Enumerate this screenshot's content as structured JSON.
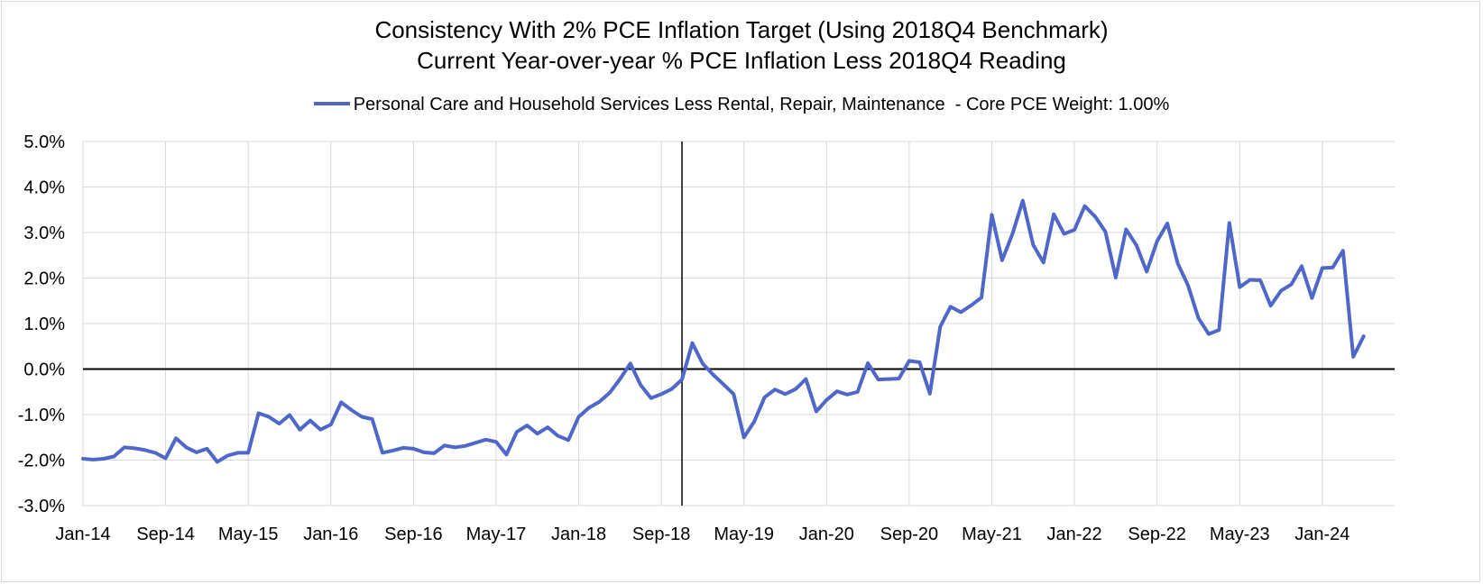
{
  "chart_data": {
    "type": "line",
    "title": "Consistency With 2% PCE Inflation Target (Using 2018Q4 Benchmark)",
    "subtitle": "Current Year-over-year % PCE Inflation Less 2018Q4 Reading",
    "xlabel": "",
    "ylabel": "",
    "ylim": [
      -3.0,
      5.0
    ],
    "y_ticks": [
      "5.0%",
      "4.0%",
      "3.0%",
      "2.0%",
      "1.0%",
      "0.0%",
      "-1.0%",
      "-2.0%",
      "-3.0%"
    ],
    "y_tick_values": [
      5,
      4,
      3,
      2,
      1,
      0,
      -1,
      -2,
      -3
    ],
    "x_ticks": [
      "Jan-14",
      "Sep-14",
      "May-15",
      "Jan-16",
      "Sep-16",
      "May-17",
      "Jan-18",
      "Sep-18",
      "May-19",
      "Jan-20",
      "Sep-20",
      "May-21",
      "Jan-22",
      "Sep-22",
      "May-23",
      "Jan-24"
    ],
    "x_tick_months": [
      0,
      8,
      16,
      24,
      32,
      40,
      48,
      56,
      64,
      72,
      80,
      88,
      96,
      104,
      112,
      120
    ],
    "x_range_months": [
      0,
      127
    ],
    "start_month": "Jan-14",
    "benchmark_month_index": 58,
    "grid": true,
    "legend_position": "top",
    "series": [
      {
        "name": "Personal Care and Household Services Less Rental, Repair, Maintenance  - Core PCE Weight: 1.00%",
        "color": "#4f67c8",
        "values": [
          -1.97,
          -1.99,
          -1.97,
          -1.92,
          -1.72,
          -1.74,
          -1.78,
          -1.84,
          -1.96,
          -1.52,
          -1.72,
          -1.83,
          -1.75,
          -2.04,
          -1.9,
          -1.84,
          -1.84,
          -0.97,
          -1.05,
          -1.2,
          -1.01,
          -1.33,
          -1.13,
          -1.33,
          -1.22,
          -0.73,
          -0.9,
          -1.05,
          -1.1,
          -1.84,
          -1.79,
          -1.73,
          -1.75,
          -1.83,
          -1.85,
          -1.68,
          -1.72,
          -1.69,
          -1.62,
          -1.55,
          -1.6,
          -1.88,
          -1.38,
          -1.24,
          -1.42,
          -1.28,
          -1.47,
          -1.56,
          -1.05,
          -0.85,
          -0.72,
          -0.52,
          -0.22,
          0.12,
          -0.35,
          -0.64,
          -0.55,
          -0.44,
          -0.23,
          0.57,
          0.12,
          -0.12,
          -0.33,
          -0.55,
          -1.5,
          -1.15,
          -0.62,
          -0.45,
          -0.55,
          -0.44,
          -0.22,
          -0.93,
          -0.68,
          -0.49,
          -0.56,
          -0.5,
          0.13,
          -0.23,
          -0.22,
          -0.21,
          0.18,
          0.15,
          -0.54,
          0.93,
          1.37,
          1.25,
          1.4,
          1.57,
          3.39,
          2.39,
          2.97,
          3.7,
          2.73,
          2.34,
          3.4,
          2.97,
          3.06,
          3.58,
          3.35,
          3.02,
          2.01,
          3.07,
          2.72,
          2.14,
          2.81,
          3.2,
          2.32,
          1.84,
          1.12,
          0.77,
          0.86,
          3.21,
          1.8,
          1.96,
          1.95,
          1.39,
          1.72,
          1.86,
          2.26,
          1.56,
          2.22,
          2.23,
          2.6,
          0.27,
          0.72
        ]
      }
    ]
  }
}
